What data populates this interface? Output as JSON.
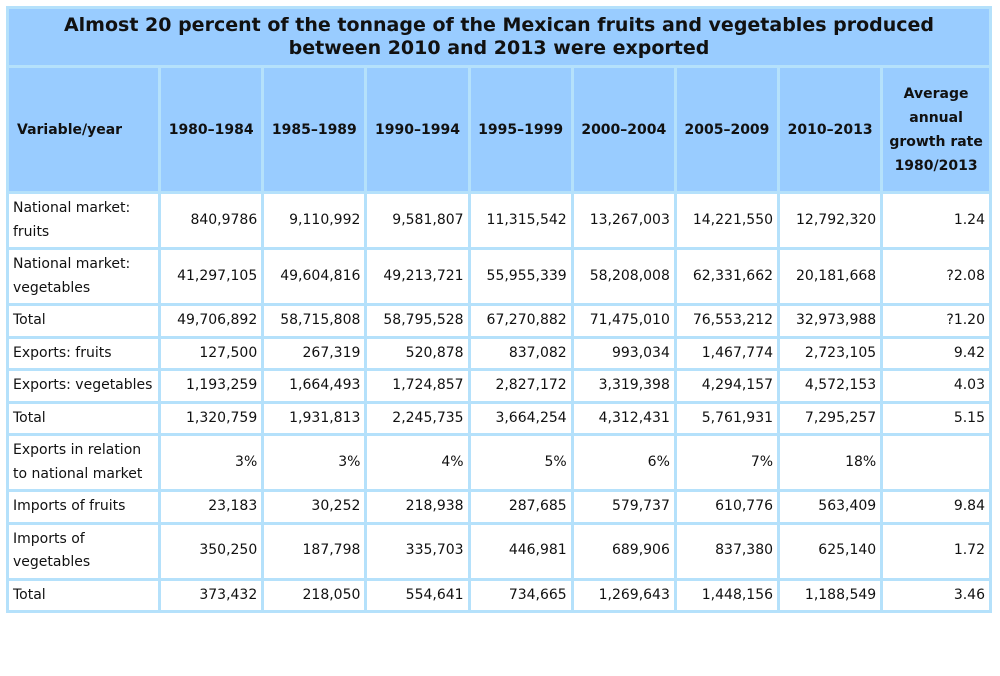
{
  "chart_data": {
    "type": "table",
    "title": "Almost 20 percent of the tonnage of the Mexican fruits and vegetables produced between 2010 and 2013 were exported",
    "columns": [
      "Variable/year",
      "1980–1984",
      "1985–1989",
      "1990–1994",
      "1995–1999",
      "2000–2004",
      "2005–2009",
      "2010–2013",
      "Average annual growth rate 1980/2013"
    ],
    "rows": [
      {
        "label": "National market: fruits",
        "values": [
          "840,9786",
          "9,110,992",
          "9,581,807",
          "11,315,542",
          "13,267,003",
          "14,221,550",
          "12,792,320",
          "1.24"
        ]
      },
      {
        "label": "National market: vegetables",
        "values": [
          "41,297,105",
          "49,604,816",
          "49,213,721",
          "55,955,339",
          "58,208,008",
          "62,331,662",
          "20,181,668",
          "?2.08"
        ]
      },
      {
        "label": "Total",
        "values": [
          "49,706,892",
          "58,715,808",
          "58,795,528",
          "67,270,882",
          "71,475,010",
          "76,553,212",
          "32,973,988",
          "?1.20"
        ]
      },
      {
        "label": "Exports: fruits",
        "values": [
          "127,500",
          "267,319",
          "520,878",
          "837,082",
          "993,034",
          "1,467,774",
          "2,723,105",
          "9.42"
        ]
      },
      {
        "label": "Exports: vegetables",
        "values": [
          "1,193,259",
          "1,664,493",
          "1,724,857",
          "2,827,172",
          "3,319,398",
          "4,294,157",
          "4,572,153",
          "4.03"
        ]
      },
      {
        "label": "Total",
        "values": [
          "1,320,759",
          "1,931,813",
          "2,245,735",
          "3,664,254",
          "4,312,431",
          "5,761,931",
          "7,295,257",
          "5.15"
        ]
      },
      {
        "label": "Exports in relation to national market",
        "values": [
          "3%",
          "3%",
          "4%",
          "5%",
          "6%",
          "7%",
          "18%",
          ""
        ]
      },
      {
        "label": "Imports of fruits",
        "values": [
          "23,183",
          "30,252",
          "218,938",
          "287,685",
          "579,737",
          "610,776",
          "563,409",
          "9.84"
        ]
      },
      {
        "label": "Imports of vegetables",
        "values": [
          "350,250",
          "187,798",
          "335,703",
          "446,981",
          "689,906",
          "837,380",
          "625,140",
          "1.72"
        ]
      },
      {
        "label": "Total",
        "values": [
          "373,432",
          "218,050",
          "554,641",
          "734,665",
          "1,269,643",
          "1,448,156",
          "1,188,549",
          "3.46"
        ]
      }
    ]
  },
  "colors": {
    "header_bg": "#99ccff",
    "border": "#b5e1fb",
    "cell_bg": "#ffffff"
  }
}
